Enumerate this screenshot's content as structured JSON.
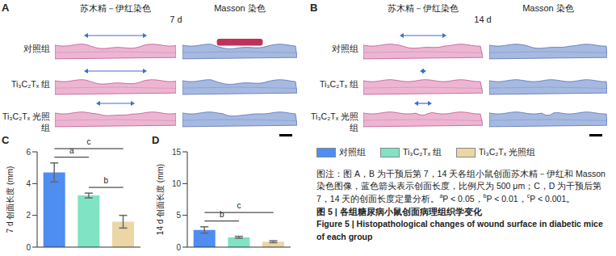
{
  "panels": [
    {
      "label": "A",
      "columns": [
        "苏木精－伊红染色",
        "Masson 染色"
      ],
      "day": "7 d",
      "rows": [
        "对照组",
        "Ti₃C₂Tₓ 组",
        "Ti₃C₂Tₓ 光照组"
      ]
    },
    {
      "label": "B",
      "columns": [
        "苏木精－伊红染色",
        "Masson 染色"
      ],
      "day": "14 d",
      "rows": [
        "对照组",
        "Ti₃C₂Tₓ 组",
        "Ti₃C₂Tₓ 光照组"
      ]
    }
  ],
  "chart_data": [
    {
      "panel": "C",
      "type": "bar",
      "y_label": "7 d 创面长度 (mm)",
      "categories": [
        "对照组",
        "Ti₃C₂Tₓ 组",
        "Ti₃C₂Tₓ 光照组"
      ],
      "values": [
        4.7,
        3.25,
        1.6
      ],
      "errors": [
        0.6,
        0.15,
        0.4
      ],
      "colors": [
        "#4e8ef2",
        "#7fe3c4",
        "#ecd6a6"
      ],
      "ylim": [
        0,
        6
      ],
      "yticks": [
        0,
        2,
        4,
        6
      ],
      "tick_labels": "y",
      "significance": [
        {
          "pair": [
            0,
            1
          ],
          "label": "a"
        },
        {
          "pair": [
            1,
            2
          ],
          "label": "b"
        },
        {
          "pair": [
            0,
            2
          ],
          "label": "c"
        }
      ]
    },
    {
      "panel": "D",
      "type": "bar",
      "y_label": "14 d 创面长度 (mm)",
      "categories": [
        "对照组",
        "Ti₃C₂Tₓ 组",
        "Ti₃C₂Tₓ 光照组"
      ],
      "values": [
        2.7,
        1.55,
        0.85
      ],
      "errors": [
        0.5,
        0.15,
        0.15
      ],
      "colors": [
        "#4e8ef2",
        "#7fe3c4",
        "#ecd6a6"
      ],
      "ylim": [
        0,
        15
      ],
      "yticks": [
        0,
        5,
        10,
        15
      ],
      "tick_labels": "y",
      "significance": [
        {
          "pair": [
            0,
            1
          ],
          "label": "b"
        },
        {
          "pair": [
            0,
            2
          ],
          "label": "c"
        }
      ]
    }
  ],
  "caption": {
    "note": [
      {
        "text": "图注：图 A，B 为干预后第 7，14 天各组小鼠创面苏木精－伊红和 Masson 染色图像，蓝色箭头表示创面长度，比例尺为 500 μm；C，D 为干预后第 7，14 天的创面长度定量分析。"
      },
      {
        "sup": "a"
      },
      {
        "text": "P < 0.05，"
      },
      {
        "sup": "b"
      },
      {
        "text": "P < 0.01，"
      },
      {
        "sup": "c"
      },
      {
        "text": "P < 0.001。"
      }
    ],
    "title_zh": "图 5 | 各组糖尿病小鼠创面病理组织学变化",
    "title_en": "Figure 5 | Histopathological changes of wound surface in diabetic mice of each group"
  }
}
